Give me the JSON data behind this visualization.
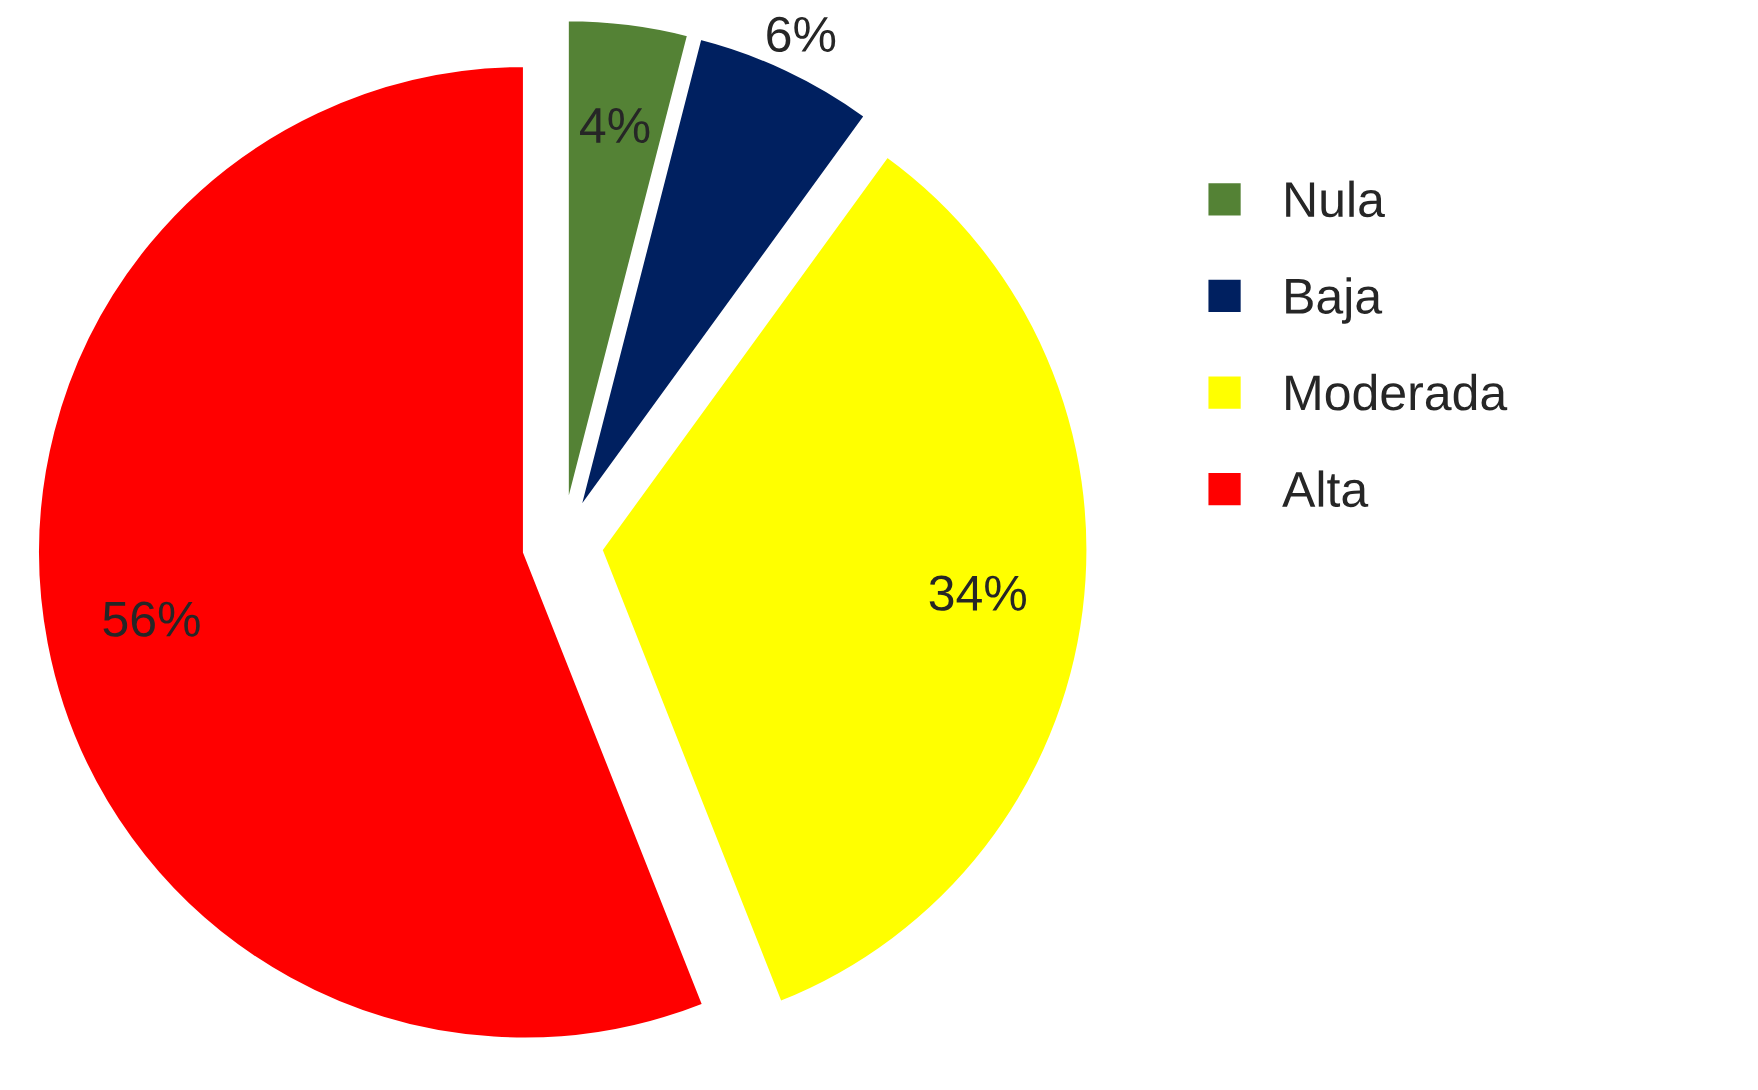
{
  "chart_data": {
    "type": "pie",
    "categories": [
      "Nula",
      "Baja",
      "Moderada",
      "Alta"
    ],
    "values": [
      4,
      6,
      34,
      56
    ],
    "colors": [
      "#548235",
      "#002060",
      "#ffff00",
      "#ff0000"
    ],
    "value_labels": [
      "4%",
      "6%",
      "34%",
      "56%"
    ],
    "legend": "right"
  }
}
